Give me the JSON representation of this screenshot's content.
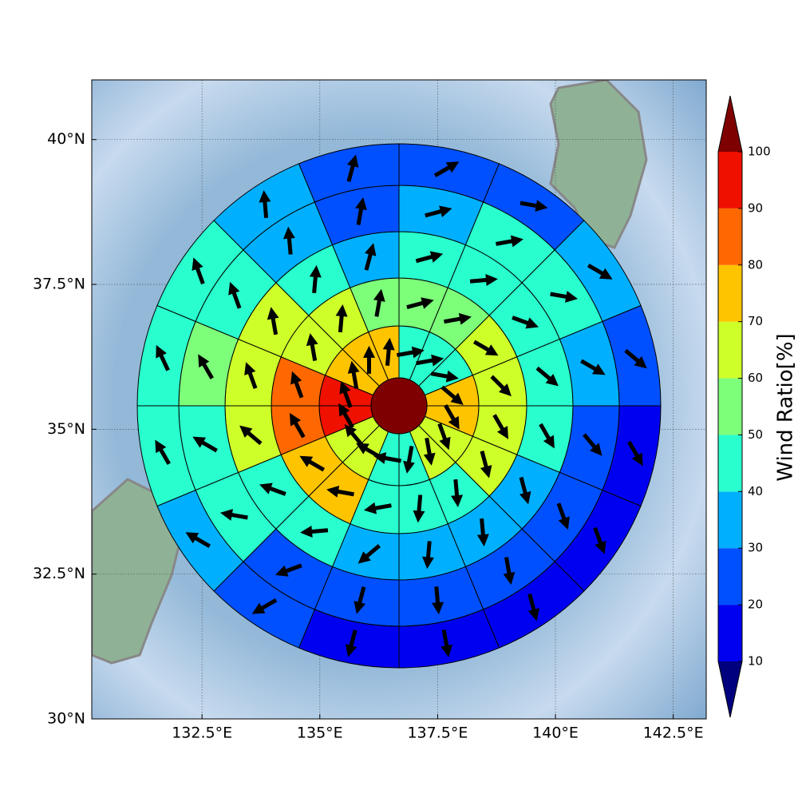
{
  "chart_data": {
    "type": "polar_map",
    "xlim": [
      130.16,
      143.2
    ],
    "ylim": [
      30,
      41.03
    ],
    "xticks": [
      {
        "value": 132.5,
        "label": "132.5°E"
      },
      {
        "value": 135,
        "label": "135°E"
      },
      {
        "value": 137.5,
        "label": "137.5°E"
      },
      {
        "value": 140,
        "label": "140°E"
      },
      {
        "value": 142.5,
        "label": "142.5°E"
      }
    ],
    "yticks": [
      {
        "value": 30,
        "label": "30°N"
      },
      {
        "value": 32.5,
        "label": "32.5°N"
      },
      {
        "value": 35,
        "label": "35°N"
      },
      {
        "value": 37.5,
        "label": "37.5°N"
      },
      {
        "value": 40,
        "label": "40°N"
      }
    ],
    "grid": true,
    "center_value": 105,
    "rings": [
      {
        "values": [
          45,
          45,
          45,
          75,
          75,
          65,
          65,
          45,
          45,
          65,
          65,
          95,
          95,
          75,
          75,
          75
        ],
        "directions": [
          80,
          80,
          100,
          130,
          150,
          160,
          170,
          190,
          280,
          300,
          320,
          330,
          340,
          350,
          0,
          5
        ]
      },
      {
        "values": [
          55,
          55,
          65,
          65,
          65,
          65,
          45,
          45,
          45,
          75,
          75,
          85,
          85,
          65,
          65,
          55
        ],
        "directions": [
          75,
          80,
          120,
          135,
          150,
          165,
          175,
          185,
          260,
          280,
          300,
          330,
          340,
          350,
          5,
          10
        ]
      },
      {
        "values": [
          45,
          45,
          45,
          45,
          45,
          35,
          35,
          35,
          35,
          45,
          45,
          65,
          65,
          62,
          45,
          35
        ],
        "directions": [
          75,
          85,
          110,
          130,
          150,
          165,
          175,
          185,
          230,
          265,
          290,
          310,
          340,
          350,
          5,
          15
        ]
      },
      {
        "values": [
          35,
          45,
          45,
          35,
          22,
          22,
          22,
          22,
          22,
          25,
          45,
          45,
          55,
          45,
          35,
          25
        ],
        "directions": [
          75,
          80,
          100,
          120,
          140,
          160,
          170,
          175,
          195,
          250,
          280,
          300,
          330,
          340,
          355,
          10
        ]
      },
      {
        "values": [
          25,
          25,
          35,
          22,
          15,
          15,
          15,
          15,
          15,
          22,
          35,
          45,
          45,
          45,
          35,
          25
        ],
        "directions": [
          60,
          100,
          120,
          130,
          150,
          160,
          165,
          170,
          195,
          240,
          300,
          330,
          335,
          340,
          355,
          15
        ]
      }
    ],
    "colorbar": {
      "label": "Wind Ratio[%]",
      "lim": [
        10,
        100
      ],
      "ticks": [
        10,
        20,
        30,
        40,
        50,
        60,
        70,
        80,
        90,
        100
      ],
      "colors": [
        "#00007f",
        "#0000f0",
        "#0050ff",
        "#00b0ff",
        "#29ffce",
        "#7dff7a",
        "#ceff29",
        "#ffc400",
        "#ff6800",
        "#f01000",
        "#7f0000"
      ]
    }
  }
}
